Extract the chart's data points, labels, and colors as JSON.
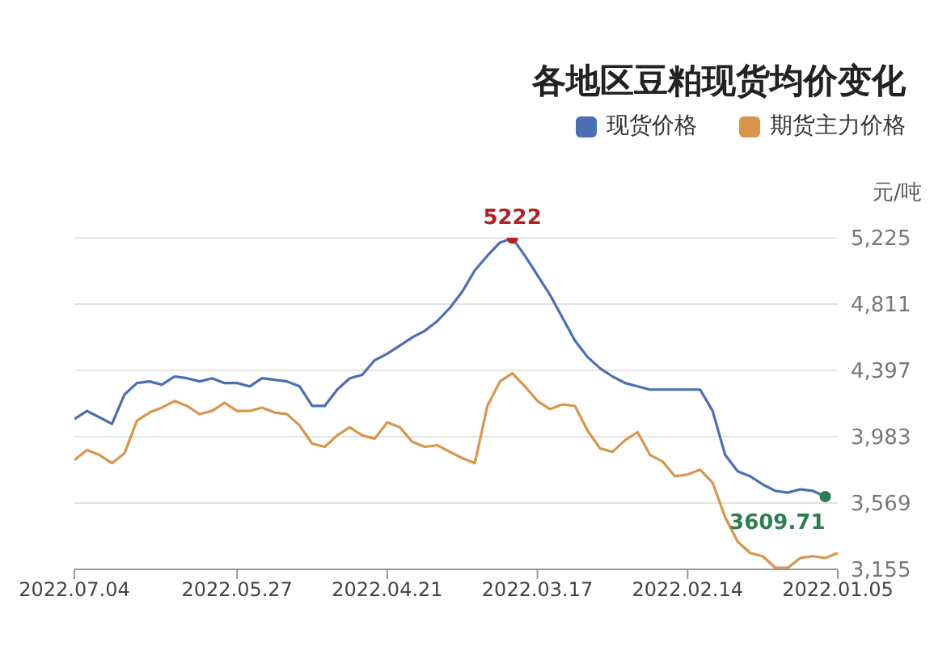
{
  "chart_data": {
    "type": "line",
    "title": "各地区豆粕现货均价变化",
    "ylabel": "元/吨",
    "categories": [
      "2022.07.04",
      null,
      null,
      null,
      null,
      null,
      null,
      null,
      null,
      null,
      null,
      null,
      null,
      "2022.05.27",
      null,
      null,
      null,
      null,
      null,
      null,
      null,
      null,
      null,
      null,
      null,
      "2022.04.21",
      null,
      null,
      null,
      null,
      null,
      null,
      null,
      null,
      null,
      null,
      null,
      "2022.03.17",
      null,
      null,
      null,
      null,
      null,
      null,
      null,
      null,
      null,
      null,
      null,
      "2022.02.14",
      null,
      null,
      null,
      null,
      null,
      null,
      null,
      null,
      null,
      null,
      null,
      "2022.01.05"
    ],
    "series": [
      {
        "name": "现货价格",
        "color": "#4a6fb5",
        "values": [
          4093,
          4144,
          4104,
          4063,
          4246,
          4318,
          4328,
          4308,
          4359,
          4348,
          4328,
          4348,
          4318,
          4318,
          4297,
          4348,
          4338,
          4328,
          4297,
          4175,
          4175,
          4277,
          4348,
          4369,
          4461,
          4501,
          4552,
          4603,
          4644,
          4705,
          4787,
          4889,
          5022,
          5113,
          5195,
          5222,
          5113,
          4991,
          4869,
          4726,
          4583,
          4481,
          4410,
          4359,
          4318,
          4297,
          4277,
          4277,
          4277,
          4277,
          4277,
          4144,
          3869,
          3767,
          3736,
          3685,
          3645,
          3634,
          3655,
          3645,
          3609.71,
          null
        ],
        "value_labels": [
          null,
          null,
          null,
          null,
          null,
          null,
          null,
          null,
          null,
          null,
          null,
          null,
          null,
          null,
          null,
          null,
          null,
          null,
          null,
          null,
          null,
          null,
          null,
          null,
          null,
          null,
          null,
          null,
          null,
          null,
          null,
          null,
          null,
          null,
          null,
          "5222",
          null,
          null,
          null,
          null,
          null,
          null,
          null,
          null,
          null,
          null,
          null,
          null,
          null,
          null,
          null,
          null,
          null,
          null,
          null,
          null,
          null,
          null,
          null,
          null,
          "3609.71",
          null
        ]
      },
      {
        "name": "期货主力价格",
        "color": "#d9964b",
        "values": [
          3838,
          3900,
          3869,
          3818,
          3879,
          4083,
          4134,
          4165,
          4206,
          4175,
          4124,
          4144,
          4195,
          4144,
          4144,
          4165,
          4134,
          4124,
          4053,
          3940,
          3920,
          3991,
          4042,
          3991,
          3971,
          4073,
          4042,
          3951,
          3920,
          3930,
          3889,
          3849,
          3818,
          4175,
          4328,
          4379,
          4297,
          4206,
          4155,
          4185,
          4175,
          4022,
          3910,
          3889,
          3961,
          4012,
          3869,
          3828,
          3736,
          3747,
          3777,
          3696,
          3481,
          3328,
          3257,
          3237,
          3165,
          3165,
          3226,
          3237,
          3226,
          3257
        ]
      }
    ],
    "ylim": [
      3155,
      5225
    ],
    "yticks": [
      {
        "value": 3155,
        "label": "3,155"
      },
      {
        "value": 3569,
        "label": "3,569"
      },
      {
        "value": 3983,
        "label": "3,983"
      },
      {
        "value": 4397,
        "label": "4,397"
      },
      {
        "value": 4811,
        "label": "4,811"
      },
      {
        "value": 5225,
        "label": "5,225"
      }
    ],
    "grid": "y",
    "legend": "top right",
    "marker": "none",
    "line_style": "solid"
  }
}
